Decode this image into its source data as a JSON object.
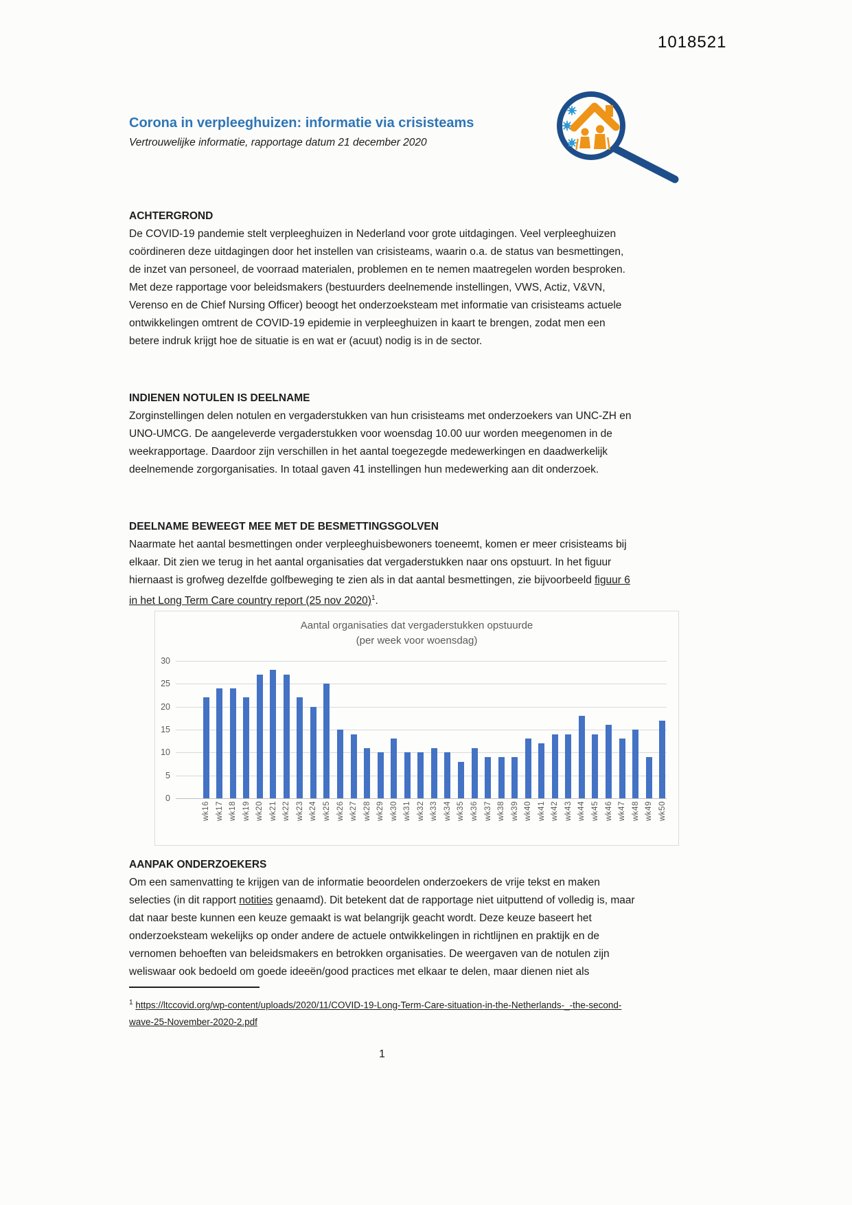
{
  "page": {
    "doc_number": "1018521",
    "page_number": "1"
  },
  "header": {
    "title": "Corona in verpleeghuizen: informatie via crisisteams",
    "subtitle": "Vertrouwelijke informatie, rapportage datum 21 december 2020",
    "logo": {
      "description": "magnifying glass over house with elderly couple and virus icons",
      "colors": {
        "ring_blue": "#1d4e8a",
        "orange": "#ee9417",
        "virus_blue": "#2f9ad4",
        "title_blue": "#2e75b6"
      }
    }
  },
  "achtergrond": {
    "heading": "ACHTERGROND",
    "para1": "De COVID-19 pandemie stelt verpleeghuizen in Nederland voor grote uitdagingen. Veel verpleeghuizen coördineren deze uitdagingen door het instellen van crisisteams, waarin o.a. de status van besmettingen, de inzet van personeel, de voorraad materialen, problemen en te nemen maatregelen worden besproken.",
    "para2": "Met deze rapportage voor beleidsmakers (bestuurders deelnemende instellingen, VWS, Actiz, V&VN, Verenso en de Chief Nursing Officer) beoogt het onderzoeksteam met informatie van crisisteams actuele ontwikkelingen omtrent de COVID-19 epidemie in verpleeghuizen in kaart te brengen, zodat men een betere indruk krijgt hoe de situatie is en wat er (acuut) nodig is in de sector."
  },
  "indienen": {
    "heading": "INDIENEN NOTULEN IS DEELNAME",
    "para": "Zorginstellingen delen notulen en vergaderstukken van hun crisisteams met onderzoekers van UNC-ZH en UNO-UMCG. De aangeleverde vergaderstukken voor woensdag 10.00 uur worden meegenomen in de weekrapportage. Daardoor zijn verschillen in het aantal toegezegde medewerkingen en daadwerkelijk deelnemende zorgorganisaties. In totaal gaven 41 instellingen hun medewerking aan dit onderzoek."
  },
  "deelname": {
    "heading": "DEELNAME BEWEEGT MEE MET DE BESMETTINGSGOLVEN",
    "para_pre": "Naarmate het aantal besmettingen onder verpleeghuisbewoners toeneemt, komen er meer crisisteams bij elkaar. Dit zien we terug in het aantal organisaties dat vergaderstukken naar ons opstuurt. In het figuur hiernaast is grofweg dezelfde golfbeweging te zien als in dat aantal besmettingen, zie bijvoorbeeld ",
    "link_text": "figuur 6 in het Long Term Care country report (25 nov 2020)",
    "link_sup": "1",
    "para_post": "."
  },
  "aanpak": {
    "heading": "AANPAK ONDERZOEKERS",
    "para_pre": "Om een samenvatting te krijgen van de informatie beoordelen onderzoekers de vrije tekst en maken selecties (in dit rapport ",
    "underlined": "notities",
    "para_post": " genaamd). Dit betekent dat de rapportage niet uitputtend of volledig is, maar dat naar beste kunnen een keuze gemaakt is wat belangrijk geacht wordt. Deze keuze baseert het onderzoeksteam wekelijks op onder andere de actuele ontwikkelingen in richtlijnen en praktijk en de vernomen behoeften van beleidsmakers en betrokken organisaties. De weergaven van de notulen zijn weliswaar ook bedoeld om goede ideeën/good practices met elkaar te delen, maar dienen niet als"
  },
  "footnote": {
    "sup": "1",
    "url": "https://ltccovid.org/wp-content/uploads/2020/11/COVID-19-Long-Term-Care-situation-in-the-Netherlands-_-the-second-wave-25-November-2020-2.pdf"
  },
  "chart_data": {
    "type": "bar",
    "title": "Aantal organisaties dat vergaderstukken opstuurde",
    "subtitle": "(per week voor woensdag)",
    "categories": [
      "wk16",
      "wk17",
      "wk18",
      "wk19",
      "wk20",
      "wk21",
      "wk22",
      "wk23",
      "wk24",
      "wk25",
      "wk26",
      "wk27",
      "wk28",
      "wk29",
      "wk30",
      "wk31",
      "wk32",
      "wk33",
      "wk34",
      "wk35",
      "wk36",
      "wk37",
      "wk38",
      "wk39",
      "wk40",
      "wk41",
      "wk42",
      "wk43",
      "wk44",
      "wk45",
      "wk46",
      "wk47",
      "wk48",
      "wk49",
      "wk50"
    ],
    "values": [
      22,
      24,
      24,
      22,
      27,
      28,
      27,
      22,
      20,
      25,
      15,
      14,
      11,
      10,
      13,
      10,
      10,
      11,
      10,
      8,
      11,
      9,
      9,
      9,
      13,
      12,
      14,
      14,
      18,
      14,
      16,
      13,
      15,
      9,
      17
    ],
    "ylim": [
      0,
      30
    ],
    "yticks": [
      0,
      5,
      10,
      15,
      20,
      25,
      30
    ],
    "xlabel": "",
    "ylabel": "",
    "bar_color": "#4472c4",
    "grid": true,
    "gridline_color": "#d9d9d9",
    "legend": "none"
  }
}
